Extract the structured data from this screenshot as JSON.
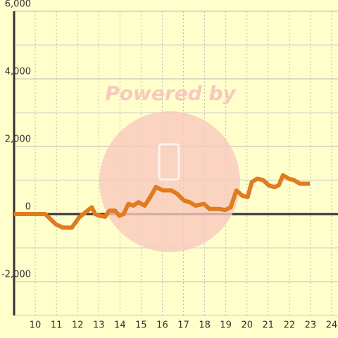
{
  "chart_data": {
    "type": "line",
    "watermark": "Powered by",
    "x": [
      9,
      10.47,
      10.97,
      11.3,
      11.73,
      12.07,
      12.37,
      12.67,
      12.83,
      13.03,
      13.3,
      13.5,
      13.77,
      13.97,
      14.17,
      14.4,
      14.63,
      14.87,
      15.17,
      15.43,
      15.7,
      16.03,
      16.43,
      16.7,
      17.03,
      17.3,
      17.57,
      17.97,
      18.23,
      18.7,
      18.97,
      19.23,
      19.5,
      19.77,
      20.03,
      20.23,
      20.5,
      20.77,
      21.03,
      21.3,
      21.5,
      21.7,
      21.97,
      22.23,
      22.5,
      22.97
    ],
    "series": [
      {
        "color": "#e07b20",
        "values": [
          0,
          0,
          -300,
          -400,
          -400,
          -100,
          50,
          200,
          0,
          -50,
          -80,
          100,
          100,
          -50,
          0,
          300,
          250,
          350,
          250,
          500,
          800,
          700,
          700,
          600,
          400,
          350,
          250,
          300,
          150,
          150,
          120,
          200,
          700,
          550,
          500,
          950,
          1050,
          1000,
          850,
          800,
          850,
          1150,
          1050,
          1000,
          900,
          900
        ]
      }
    ],
    "xlim": [
      9,
      24.3
    ],
    "xticks": [
      10,
      11,
      12,
      13,
      14,
      15,
      16,
      17,
      18,
      19,
      20,
      21,
      22,
      23,
      24
    ],
    "ylim": [
      -3000,
      6000
    ],
    "yticks": [
      {
        "value": 6000,
        "label": "6,000"
      },
      {
        "value": 4000,
        "label": "4,000"
      },
      {
        "value": 2000,
        "label": "2,000"
      },
      0,
      {
        "value": -2000,
        "label": "-2,000"
      }
    ],
    "minor_yticks": [
      5000,
      3000,
      1000,
      -1000,
      -3000
    ],
    "grid": true
  }
}
